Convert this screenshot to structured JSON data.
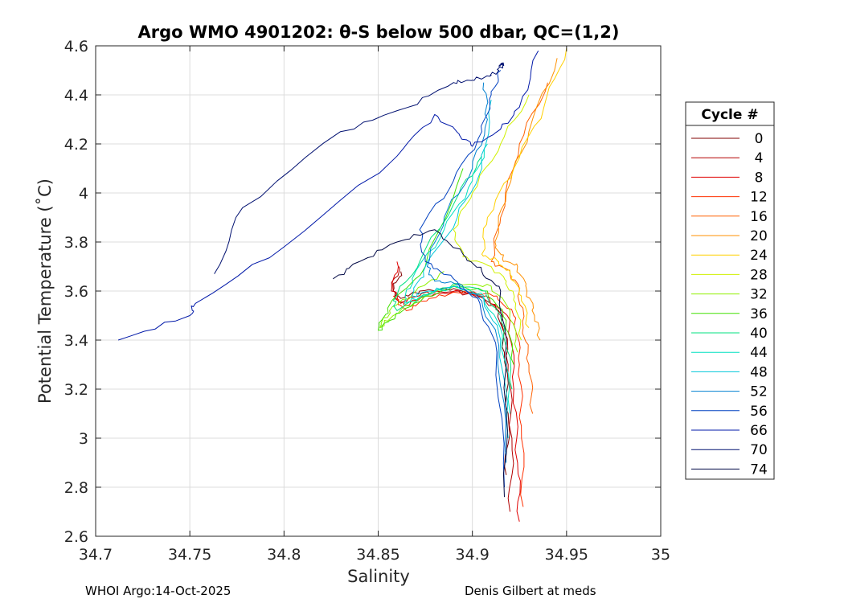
{
  "chart_data": {
    "type": "line",
    "title": "Argo WMO 4901202: θ-S below 500 dbar,  QC=(1,2)",
    "xlabel": "Salinity",
    "ylabel": "Potential Temperature (˚C)",
    "xlim": [
      34.7,
      35.0
    ],
    "ylim": [
      2.6,
      4.6
    ],
    "xticks": [
      "34.7",
      "34.75",
      "34.8",
      "34.85",
      "34.9",
      "34.95",
      "35"
    ],
    "yticks": [
      "2.6",
      "2.8",
      "3",
      "3.2",
      "3.4",
      "3.6",
      "3.8",
      "4",
      "4.2",
      "4.4",
      "4.6"
    ],
    "grid": true,
    "legend_title": "Cycle #",
    "legend_position": "right-outside",
    "series": [
      {
        "name": "0",
        "color": "#800000",
        "x": [
          34.918,
          34.919,
          34.917,
          34.914,
          34.905,
          34.89,
          34.872,
          34.862,
          34.858,
          34.862
        ],
        "y": [
          2.85,
          3.1,
          3.35,
          3.52,
          3.58,
          3.61,
          3.6,
          3.57,
          3.6,
          3.68
        ]
      },
      {
        "name": "4",
        "color": "#b30000",
        "x": [
          34.92,
          34.921,
          34.919,
          34.916,
          34.906,
          34.891,
          34.873,
          34.862,
          34.857,
          34.861
        ],
        "y": [
          2.7,
          3.0,
          3.3,
          3.5,
          3.57,
          3.6,
          3.59,
          3.55,
          3.6,
          3.7
        ]
      },
      {
        "name": "8",
        "color": "#e00000",
        "x": [
          34.925,
          34.924,
          34.922,
          34.92,
          34.909,
          34.893,
          34.875,
          34.864,
          34.858,
          34.86
        ],
        "y": [
          2.66,
          2.9,
          3.2,
          3.48,
          3.57,
          3.6,
          3.58,
          3.54,
          3.6,
          3.72
        ]
      },
      {
        "name": "12",
        "color": "#ff3000",
        "x": [
          34.927,
          34.926,
          34.925,
          34.923,
          34.913,
          34.896,
          34.877,
          34.865,
          34.858
        ],
        "y": [
          2.72,
          3.05,
          3.3,
          3.49,
          3.58,
          3.6,
          3.57,
          3.52,
          3.58
        ]
      },
      {
        "name": "16",
        "color": "#ff6000",
        "x": [
          34.932,
          34.93,
          34.927,
          34.925,
          34.92,
          34.91,
          34.915,
          34.925,
          34.94
        ],
        "y": [
          3.1,
          3.3,
          3.45,
          3.6,
          3.68,
          3.72,
          3.9,
          4.2,
          4.45
        ]
      },
      {
        "name": "20",
        "color": "#ff9000",
        "x": [
          34.936,
          34.933,
          34.929,
          34.924,
          34.916,
          34.912,
          34.918,
          34.93,
          34.945
        ],
        "y": [
          3.4,
          3.5,
          3.6,
          3.7,
          3.73,
          3.8,
          4.0,
          4.25,
          4.55
        ]
      },
      {
        "name": "24",
        "color": "#ffd000",
        "x": [
          34.93,
          34.926,
          34.921,
          34.914,
          34.905,
          34.908,
          34.922,
          34.938,
          34.95
        ],
        "y": [
          3.45,
          3.58,
          3.66,
          3.72,
          3.75,
          3.9,
          4.1,
          4.35,
          4.59
        ]
      },
      {
        "name": "28",
        "color": "#d0f000",
        "x": [
          34.926,
          34.923,
          34.918,
          34.91,
          34.895,
          34.89,
          34.9,
          34.915,
          34.93
        ],
        "y": [
          3.4,
          3.55,
          3.64,
          3.7,
          3.74,
          3.85,
          4.0,
          4.2,
          4.4
        ]
      },
      {
        "name": "32",
        "color": "#90f000",
        "x": [
          34.924,
          34.92,
          34.91,
          34.893,
          34.872,
          34.858,
          34.851,
          34.856,
          34.87,
          34.885
        ],
        "y": [
          3.35,
          3.52,
          3.62,
          3.63,
          3.57,
          3.5,
          3.45,
          3.52,
          3.6,
          3.68
        ]
      },
      {
        "name": "36",
        "color": "#40e000",
        "x": [
          34.922,
          34.918,
          34.908,
          34.89,
          34.869,
          34.856,
          34.85,
          34.855,
          34.875,
          34.895
        ],
        "y": [
          3.3,
          3.48,
          3.6,
          3.62,
          3.55,
          3.48,
          3.44,
          3.53,
          3.7,
          4.1
        ]
      },
      {
        "name": "40",
        "color": "#00e080",
        "x": [
          34.921,
          34.917,
          34.907,
          34.89,
          34.871,
          34.86,
          34.858,
          34.872,
          34.893,
          34.905
        ],
        "y": [
          3.2,
          3.45,
          3.6,
          3.63,
          3.57,
          3.52,
          3.56,
          3.72,
          4.0,
          4.15
        ]
      },
      {
        "name": "44",
        "color": "#00e0c0",
        "x": [
          34.92,
          34.916,
          34.906,
          34.891,
          34.874,
          34.864,
          34.868,
          34.885,
          34.9,
          34.908
        ],
        "y": [
          3.1,
          3.42,
          3.58,
          3.62,
          3.58,
          3.55,
          3.65,
          3.85,
          4.05,
          4.2
        ]
      },
      {
        "name": "48",
        "color": "#00c8d8",
        "x": [
          34.919,
          34.915,
          34.906,
          34.892,
          34.877,
          34.868,
          34.874,
          34.892,
          34.905,
          34.91
        ],
        "y": [
          3.0,
          3.4,
          3.57,
          3.62,
          3.6,
          3.58,
          3.68,
          3.9,
          4.1,
          4.38
        ]
      },
      {
        "name": "52",
        "color": "#0080d0",
        "x": [
          34.918,
          34.914,
          34.905,
          34.893,
          34.88,
          34.876,
          34.885,
          34.9,
          34.908,
          34.906
        ],
        "y": [
          2.9,
          3.38,
          3.56,
          3.63,
          3.64,
          3.7,
          3.9,
          4.1,
          4.3,
          4.45
        ]
      },
      {
        "name": "56",
        "color": "#0040c0",
        "x": [
          34.917,
          34.913,
          34.904,
          34.89,
          34.875,
          34.872,
          34.89,
          34.905,
          34.91,
          34.915
        ],
        "y": [
          2.8,
          3.35,
          3.55,
          3.65,
          3.72,
          3.85,
          4.05,
          4.25,
          4.4,
          4.5
        ]
      },
      {
        "name": "66",
        "color": "#0018a8",
        "x": [
          34.712,
          34.75,
          34.753,
          34.8,
          34.86,
          34.88,
          34.893,
          34.9,
          34.915,
          34.925,
          34.935
        ],
        "y": [
          3.4,
          3.5,
          3.55,
          3.78,
          4.15,
          4.32,
          4.24,
          4.19,
          4.26,
          4.35,
          4.58
        ]
      },
      {
        "name": "70",
        "color": "#001070",
        "x": [
          34.763,
          34.778,
          34.83,
          34.866,
          34.89,
          34.9,
          34.91,
          34.914,
          34.916,
          34.915
        ],
        "y": [
          3.67,
          3.94,
          4.25,
          4.35,
          4.45,
          4.46,
          4.48,
          4.5,
          4.53,
          4.52
        ]
      },
      {
        "name": "74",
        "color": "#000845",
        "x": [
          34.826,
          34.84,
          34.86,
          34.88,
          34.895,
          34.905,
          34.915,
          34.918,
          34.917
        ],
        "y": [
          3.65,
          3.72,
          3.8,
          3.85,
          3.75,
          3.68,
          3.6,
          3.3,
          2.76
        ]
      }
    ]
  },
  "footer": {
    "left": "WHOI Argo:14-Oct-2025",
    "right": "Denis Gilbert at meds"
  }
}
